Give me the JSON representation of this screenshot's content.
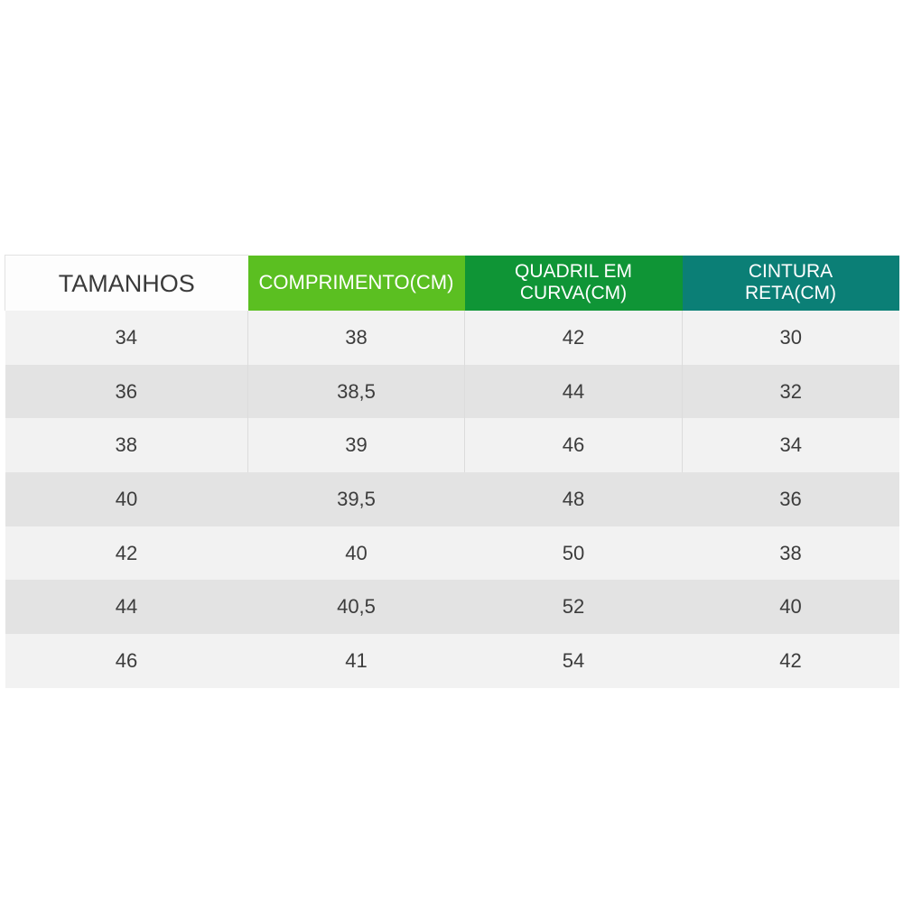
{
  "colors": {
    "header_plain_bg": "#fdfdfd",
    "header_comprimento_bg": "#5bbf21",
    "header_quadril_bg": "#0f9536",
    "header_cintura_bg": "#0b7f76",
    "row_light": "#f2f2f2",
    "row_dark": "#e3e3e3",
    "text": "#3c3c3c"
  },
  "table": {
    "headers": [
      {
        "lines": [
          "TAMANHOS"
        ]
      },
      {
        "lines": [
          "COMPRIMENTO(CM)"
        ]
      },
      {
        "lines": [
          "QUADRIL EM",
          "CURVA(CM)"
        ]
      },
      {
        "lines": [
          "CINTURA",
          "RETA(CM)"
        ]
      }
    ],
    "rows": [
      [
        "34",
        "38",
        "42",
        "30"
      ],
      [
        "36",
        "38,5",
        "44",
        "32"
      ],
      [
        "38",
        "39",
        "46",
        "34"
      ],
      [
        "40",
        "39,5",
        "48",
        "36"
      ],
      [
        "42",
        "40",
        "50",
        "38"
      ],
      [
        "44",
        "40,5",
        "52",
        "40"
      ],
      [
        "46",
        "41",
        "54",
        "42"
      ]
    ]
  }
}
